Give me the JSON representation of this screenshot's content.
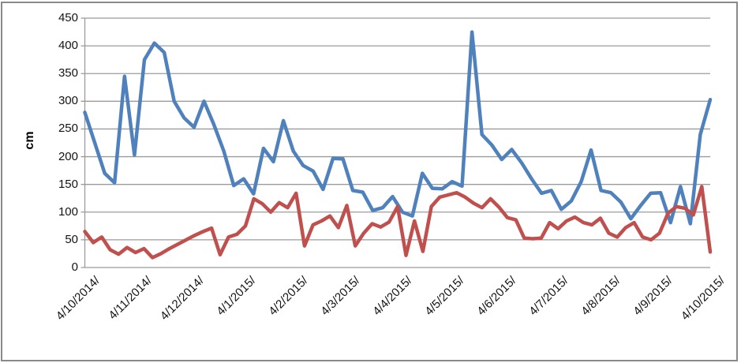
{
  "chart_data": {
    "type": "line",
    "title": "",
    "ylabel": "cm",
    "xlabel": "",
    "ylim": [
      0,
      450
    ],
    "y_step": 50,
    "y_ticks": [
      450,
      400,
      350,
      300,
      250,
      200,
      150,
      100,
      50,
      0
    ],
    "x_tick_labels": [
      "4/10/2014/",
      "4/11/2014/",
      "4/12/2014/",
      "4/1/2015/",
      "4/2/2015/",
      "4/3/2015/",
      "4/4/2015/",
      "4/5/2015/",
      "4/6/2015/",
      "4/7/2015/",
      "4/8/2015/",
      "4/9/2015/",
      "4/10/2015/"
    ],
    "grid": "horizontal",
    "legend": "none",
    "series": [
      {
        "name": "blue-line",
        "color": "#4F81BD",
        "values": [
          280,
          225,
          170,
          153,
          345,
          203,
          375,
          405,
          388,
          300,
          270,
          253,
          300,
          258,
          210,
          148,
          160,
          133,
          215,
          191,
          265,
          210,
          184,
          174,
          141,
          197,
          196,
          139,
          136,
          103,
          108,
          128,
          100,
          93,
          170,
          143,
          142,
          155,
          147,
          425,
          240,
          221,
          195,
          213,
          189,
          160,
          134,
          139,
          105,
          120,
          155,
          212,
          139,
          135,
          118,
          88,
          112,
          134,
          135,
          81,
          146,
          79,
          240,
          303
        ]
      },
      {
        "name": "red-line",
        "color": "#C0504D",
        "values": [
          65,
          45,
          55,
          32,
          24,
          36,
          27,
          34,
          18,
          25,
          34,
          42,
          50,
          58,
          65,
          71,
          23,
          55,
          60,
          75,
          124,
          115,
          100,
          117,
          108,
          134,
          39,
          77,
          84,
          93,
          72,
          112,
          39,
          62,
          79,
          73,
          82,
          110,
          22,
          84,
          29,
          110,
          127,
          131,
          135,
          127,
          116,
          108,
          124,
          109,
          90,
          86,
          53,
          52,
          53,
          81,
          70,
          84,
          91,
          81,
          77,
          89,
          62,
          55,
          72,
          81,
          55,
          50,
          62,
          98,
          110,
          107,
          95,
          146,
          28
        ]
      }
    ]
  },
  "colors": {
    "grid": "#9b9b9b",
    "axis": "#9b9b9b",
    "border": "#8a8a8a",
    "text": "#141414"
  }
}
